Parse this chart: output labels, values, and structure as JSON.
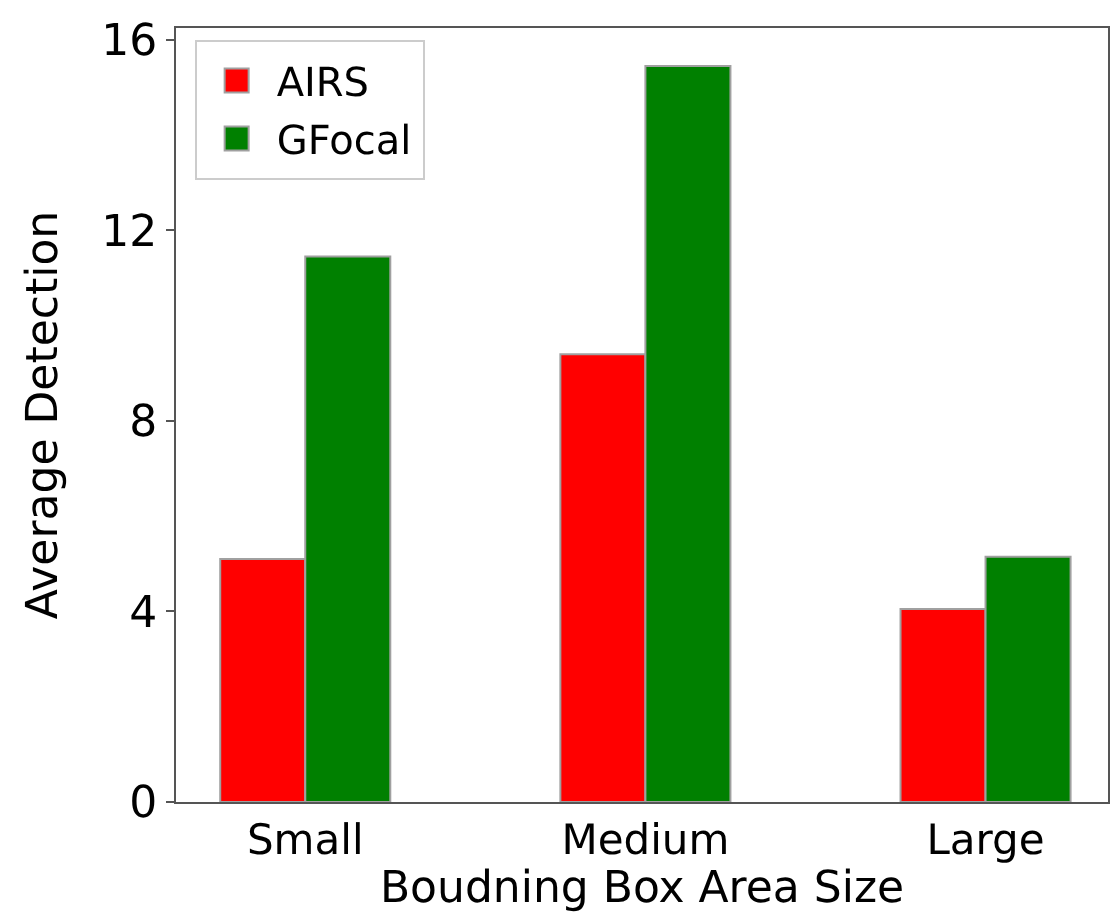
{
  "chart_data": {
    "type": "bar",
    "xlabel": "Boudning Box Area Size",
    "ylabel": "Average Detection",
    "categories": [
      "Small",
      "Medium",
      "Large"
    ],
    "series": [
      {
        "name": "AIRS",
        "color": "#ff0000",
        "values": [
          5.1,
          9.4,
          4.05
        ]
      },
      {
        "name": "GFocal",
        "color": "#008000",
        "values": [
          11.45,
          15.45,
          5.15
        ]
      }
    ],
    "ylim": [
      0,
      16.25
    ],
    "yticks": [
      0,
      4,
      8,
      12,
      16
    ],
    "legend": "top left"
  }
}
